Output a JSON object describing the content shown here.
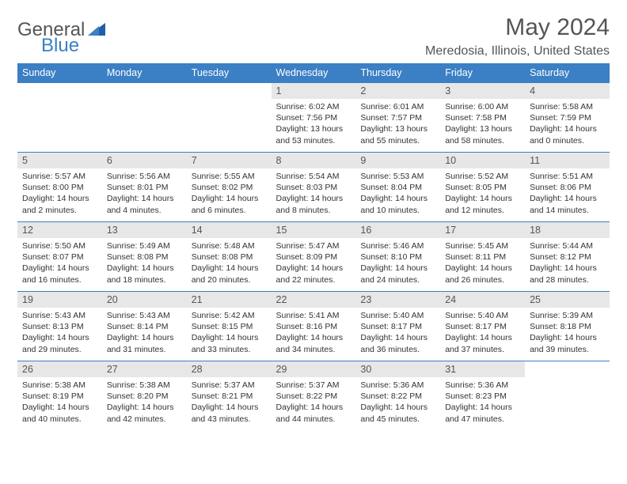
{
  "logo": {
    "part1": "General",
    "part2": "Blue"
  },
  "title": "May 2024",
  "location": "Meredosia, Illinois, United States",
  "colors": {
    "header_bg": "#3b7fc4",
    "header_text": "#ffffff",
    "daynum_bg": "#e7e7e7",
    "border": "#3b7fc4",
    "text": "#333333",
    "muted": "#555555",
    "background": "#ffffff"
  },
  "fonts": {
    "title_size": 30,
    "location_size": 16,
    "header_size": 12.5,
    "body_size": 10.5
  },
  "day_headers": [
    "Sunday",
    "Monday",
    "Tuesday",
    "Wednesday",
    "Thursday",
    "Friday",
    "Saturday"
  ],
  "weeks": [
    [
      null,
      null,
      null,
      {
        "num": "1",
        "sunrise": "6:02 AM",
        "sunset": "7:56 PM",
        "daylight": "13 hours and 53 minutes."
      },
      {
        "num": "2",
        "sunrise": "6:01 AM",
        "sunset": "7:57 PM",
        "daylight": "13 hours and 55 minutes."
      },
      {
        "num": "3",
        "sunrise": "6:00 AM",
        "sunset": "7:58 PM",
        "daylight": "13 hours and 58 minutes."
      },
      {
        "num": "4",
        "sunrise": "5:58 AM",
        "sunset": "7:59 PM",
        "daylight": "14 hours and 0 minutes."
      }
    ],
    [
      {
        "num": "5",
        "sunrise": "5:57 AM",
        "sunset": "8:00 PM",
        "daylight": "14 hours and 2 minutes."
      },
      {
        "num": "6",
        "sunrise": "5:56 AM",
        "sunset": "8:01 PM",
        "daylight": "14 hours and 4 minutes."
      },
      {
        "num": "7",
        "sunrise": "5:55 AM",
        "sunset": "8:02 PM",
        "daylight": "14 hours and 6 minutes."
      },
      {
        "num": "8",
        "sunrise": "5:54 AM",
        "sunset": "8:03 PM",
        "daylight": "14 hours and 8 minutes."
      },
      {
        "num": "9",
        "sunrise": "5:53 AM",
        "sunset": "8:04 PM",
        "daylight": "14 hours and 10 minutes."
      },
      {
        "num": "10",
        "sunrise": "5:52 AM",
        "sunset": "8:05 PM",
        "daylight": "14 hours and 12 minutes."
      },
      {
        "num": "11",
        "sunrise": "5:51 AM",
        "sunset": "8:06 PM",
        "daylight": "14 hours and 14 minutes."
      }
    ],
    [
      {
        "num": "12",
        "sunrise": "5:50 AM",
        "sunset": "8:07 PM",
        "daylight": "14 hours and 16 minutes."
      },
      {
        "num": "13",
        "sunrise": "5:49 AM",
        "sunset": "8:08 PM",
        "daylight": "14 hours and 18 minutes."
      },
      {
        "num": "14",
        "sunrise": "5:48 AM",
        "sunset": "8:08 PM",
        "daylight": "14 hours and 20 minutes."
      },
      {
        "num": "15",
        "sunrise": "5:47 AM",
        "sunset": "8:09 PM",
        "daylight": "14 hours and 22 minutes."
      },
      {
        "num": "16",
        "sunrise": "5:46 AM",
        "sunset": "8:10 PM",
        "daylight": "14 hours and 24 minutes."
      },
      {
        "num": "17",
        "sunrise": "5:45 AM",
        "sunset": "8:11 PM",
        "daylight": "14 hours and 26 minutes."
      },
      {
        "num": "18",
        "sunrise": "5:44 AM",
        "sunset": "8:12 PM",
        "daylight": "14 hours and 28 minutes."
      }
    ],
    [
      {
        "num": "19",
        "sunrise": "5:43 AM",
        "sunset": "8:13 PM",
        "daylight": "14 hours and 29 minutes."
      },
      {
        "num": "20",
        "sunrise": "5:43 AM",
        "sunset": "8:14 PM",
        "daylight": "14 hours and 31 minutes."
      },
      {
        "num": "21",
        "sunrise": "5:42 AM",
        "sunset": "8:15 PM",
        "daylight": "14 hours and 33 minutes."
      },
      {
        "num": "22",
        "sunrise": "5:41 AM",
        "sunset": "8:16 PM",
        "daylight": "14 hours and 34 minutes."
      },
      {
        "num": "23",
        "sunrise": "5:40 AM",
        "sunset": "8:17 PM",
        "daylight": "14 hours and 36 minutes."
      },
      {
        "num": "24",
        "sunrise": "5:40 AM",
        "sunset": "8:17 PM",
        "daylight": "14 hours and 37 minutes."
      },
      {
        "num": "25",
        "sunrise": "5:39 AM",
        "sunset": "8:18 PM",
        "daylight": "14 hours and 39 minutes."
      }
    ],
    [
      {
        "num": "26",
        "sunrise": "5:38 AM",
        "sunset": "8:19 PM",
        "daylight": "14 hours and 40 minutes."
      },
      {
        "num": "27",
        "sunrise": "5:38 AM",
        "sunset": "8:20 PM",
        "daylight": "14 hours and 42 minutes."
      },
      {
        "num": "28",
        "sunrise": "5:37 AM",
        "sunset": "8:21 PM",
        "daylight": "14 hours and 43 minutes."
      },
      {
        "num": "29",
        "sunrise": "5:37 AM",
        "sunset": "8:22 PM",
        "daylight": "14 hours and 44 minutes."
      },
      {
        "num": "30",
        "sunrise": "5:36 AM",
        "sunset": "8:22 PM",
        "daylight": "14 hours and 45 minutes."
      },
      {
        "num": "31",
        "sunrise": "5:36 AM",
        "sunset": "8:23 PM",
        "daylight": "14 hours and 47 minutes."
      },
      null
    ]
  ],
  "labels": {
    "sunrise": "Sunrise:",
    "sunset": "Sunset:",
    "daylight": "Daylight:"
  }
}
